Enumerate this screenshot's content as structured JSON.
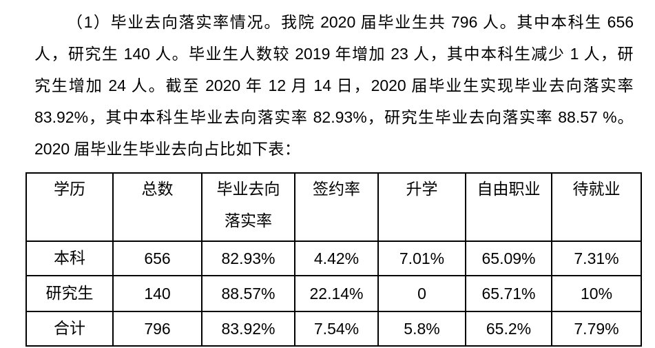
{
  "page": {
    "background_color": "#ffffff",
    "text_color": "#000000",
    "table_border_color": "#000000"
  },
  "paragraph": {
    "lines": [
      "（1）毕业去向落实率情况。我院 2020 届毕业生共 796 人。其中本科生 656",
      "人，研究生 140 人。毕业生人数较 2019 年增加 23 人，其中本科生减少 1 人，研",
      "究生增加 24 人。截至 2020 年 12 月 14 日，2020 届毕业生实现毕业去向落实率",
      "83.92%，其中本科生毕业去向落实率 82.93%，研究生毕业去向落实率 88.57 %。",
      "2020 届毕业生毕业去向占比如下表："
    ]
  },
  "table": {
    "header": {
      "education": "学历",
      "total": "总数",
      "rate_line1": "毕业去向",
      "rate_line2": "落实率",
      "sign_rate": "签约率",
      "further_study": "升学",
      "freelance": "自由职业",
      "pending_employment": "待就业"
    },
    "rows": [
      [
        "本科",
        "656",
        "82.93%",
        "4.42%",
        "7.01%",
        "65.09%",
        "7.31%"
      ],
      [
        "研究生",
        "140",
        "88.57%",
        "22.14%",
        "0",
        "65.71%",
        "10%"
      ],
      [
        "合计",
        "796",
        "83.92%",
        "7.54%",
        "5.8%",
        "65.2%",
        "7.79%"
      ]
    ]
  }
}
